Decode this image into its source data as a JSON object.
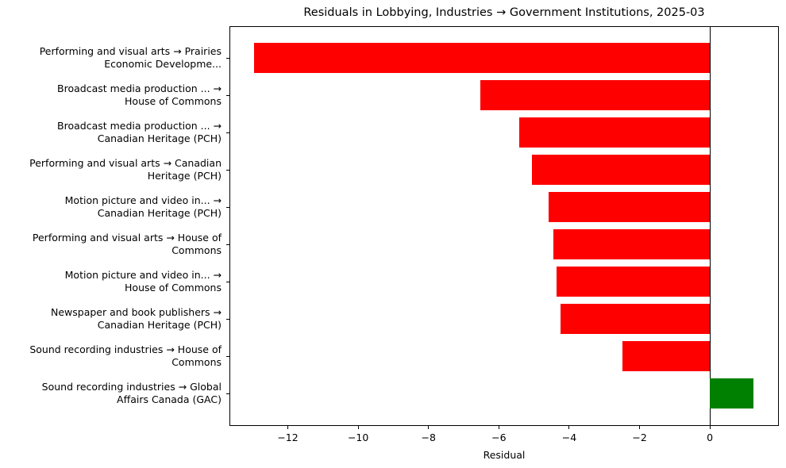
{
  "chart_data": {
    "type": "bar",
    "orientation": "horizontal",
    "title": "Residuals in Lobbying, Industries → Government Institutions, 2025-03",
    "xlabel": "Residual",
    "ylabel": "",
    "xlim": [
      -13.66,
      1.96
    ],
    "xticks": [
      -12,
      -10,
      -8,
      -6,
      -4,
      -2,
      0
    ],
    "xtick_labels": [
      "−12",
      "−10",
      "−8",
      "−6",
      "−4",
      "−2",
      "0"
    ],
    "grid": false,
    "legend": null,
    "zero_line": true,
    "colors": {
      "negative": "#ff0000",
      "positive": "#008000"
    },
    "categories": [
      "Performing and visual arts → Prairies\nEconomic Developme...",
      "Broadcast media production ... →\nHouse of Commons",
      "Broadcast media production ... →\nCanadian Heritage (PCH)",
      "Performing and visual arts → Canadian\nHeritage (PCH)",
      "Motion picture and video in... →\nCanadian Heritage (PCH)",
      "Performing and visual arts → House of\nCommons",
      "Motion picture and video in... →\nHouse of Commons",
      "Newspaper and book publishers →\nCanadian Heritage (PCH)",
      "Sound recording industries → House of\nCommons",
      "Sound recording industries → Global\nAffairs Canada (GAC)"
    ],
    "values": [
      -12.96,
      -6.52,
      -5.42,
      -5.06,
      -4.58,
      -4.45,
      -4.36,
      -4.24,
      -2.48,
      1.24
    ]
  }
}
